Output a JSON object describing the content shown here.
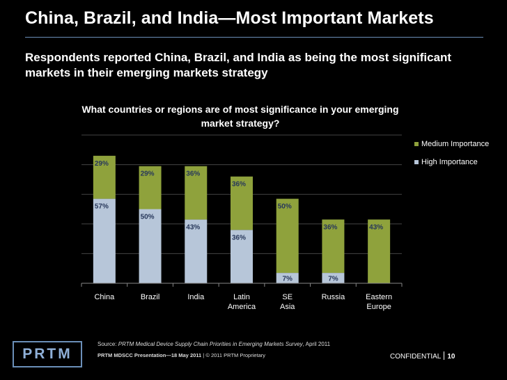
{
  "slide": {
    "title": "China, Brazil, and India—Most Important Markets",
    "subtitle": "Respondents reported China, Brazil, and India as being the most significant markets in their emerging markets strategy"
  },
  "chart_data": {
    "type": "bar",
    "stacked": true,
    "title": "What countries or regions are of most significance in your emerging market strategy?",
    "categories": [
      "China",
      "Brazil",
      "India",
      "Latin America",
      "SE Asia",
      "Russia",
      "Eastern Europe"
    ],
    "series": [
      {
        "name": "High Importance",
        "color": "#b7c6d9",
        "values": [
          57,
          50,
          43,
          36,
          7,
          7,
          0
        ],
        "labels": [
          "57%",
          "50%",
          "43%",
          "36%",
          "7%",
          "7%",
          ""
        ]
      },
      {
        "name": "Medium Importance",
        "color": "#8fa23c",
        "values": [
          29,
          29,
          36,
          36,
          50,
          36,
          43
        ],
        "labels": [
          "29%",
          "29%",
          "36%",
          "36%",
          "50%",
          "36%",
          "43%"
        ]
      }
    ],
    "ylim": [
      0,
      100
    ],
    "grid": true,
    "legend": "right"
  },
  "legend": {
    "items": [
      {
        "label": "Medium Importance",
        "color": "#8fa23c"
      },
      {
        "label": "High Importance",
        "color": "#b7c6d9"
      }
    ]
  },
  "footer": {
    "source_prefix": "Source: ",
    "source_title": "PRTM Medical Device Supply Chain Priorities in Emerging Markets Survey",
    "source_suffix": ", April 2011",
    "presentation": "PRTM MDSCC Presentation—18 May 2011",
    "copyright": " | © 2011 PRTM Proprietary",
    "confidential": "CONFIDENTIAL",
    "page_number": "10",
    "logo_text": "PRTM"
  }
}
